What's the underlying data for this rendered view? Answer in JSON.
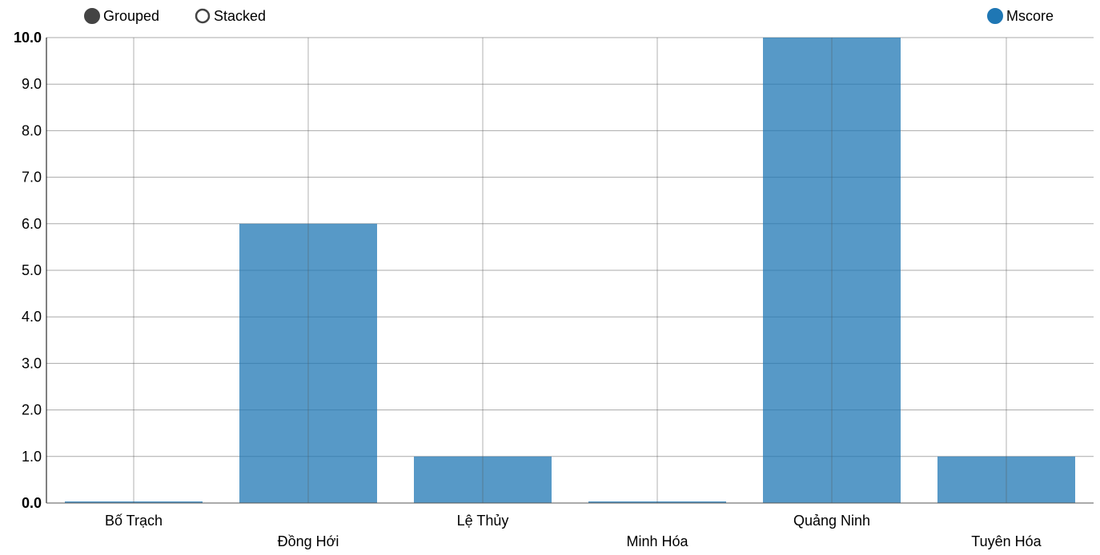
{
  "controls": {
    "grouped_label": "Grouped",
    "stacked_label": "Stacked",
    "selected": "Grouped"
  },
  "legend": {
    "items": [
      {
        "label": "Mscore",
        "color": "#1f77b4"
      }
    ],
    "placement": "top-right"
  },
  "colors": {
    "bar": "#1f77b4",
    "grid": "#aaaaaa"
  },
  "chart_data": {
    "type": "bar",
    "categories": [
      "Bố Trạch",
      "Đồng Hới",
      "Lệ Thủy",
      "Minh Hóa",
      "Quảng Ninh",
      "Tuyên Hóa"
    ],
    "series": [
      {
        "name": "Mscore",
        "values": [
          0,
          6,
          1,
          0,
          10,
          1
        ]
      }
    ],
    "title": "",
    "xlabel": "",
    "ylabel": "",
    "ylim": [
      0,
      10
    ],
    "yticks": [
      "0.0",
      "1.0",
      "2.0",
      "3.0",
      "4.0",
      "5.0",
      "6.0",
      "7.0",
      "8.0",
      "9.0",
      "10.0"
    ],
    "grid": true,
    "legend_position": "top-right"
  }
}
